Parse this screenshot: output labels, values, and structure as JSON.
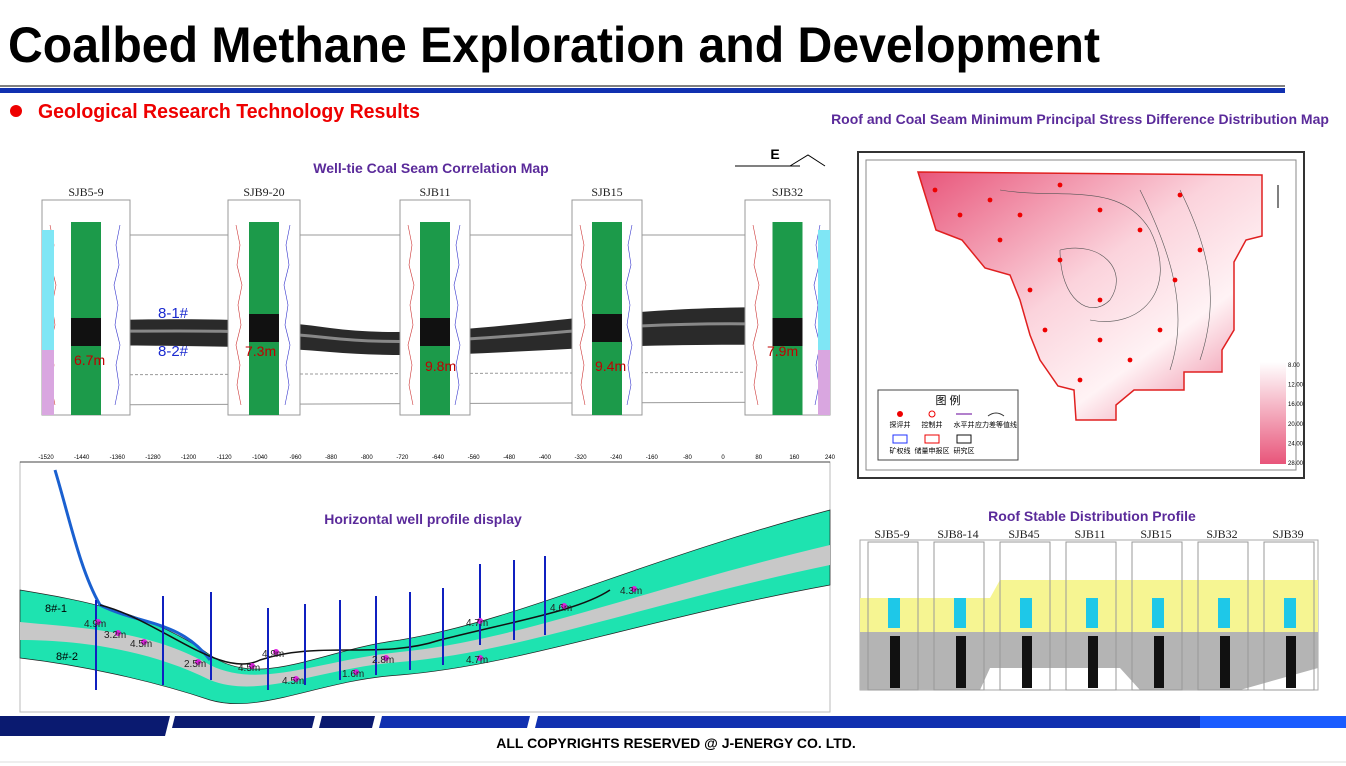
{
  "header": {
    "title": "Coalbed Methane Exploration and Development",
    "subtitle": "Geological Research Technology  Results"
  },
  "correlation": {
    "title": "Well-tie Coal Seam Correlation Map",
    "direction": "E",
    "wells": [
      "SJB5-9",
      "SJB9-20",
      "SJB11",
      "SJB15",
      "SJB32"
    ],
    "seam_labels": [
      "8-1#",
      "8-2#"
    ],
    "thicknesses": [
      "6.7m",
      "7.3m",
      "9.8m",
      "9.4m",
      "7.9m"
    ]
  },
  "stress_map": {
    "title": "Roof and Coal Seam Minimum Principal Stress Difference Distribution Map",
    "legend_title": "图 例",
    "legend_items": [
      "探评井",
      "控制井",
      "水平井",
      "应力差等值线",
      "矿权线",
      "储量申报区",
      "研究区"
    ],
    "scale": [
      "8.00",
      "12.00",
      "16.00",
      "20.00",
      "24.00",
      "28.00"
    ]
  },
  "horizontal": {
    "title": "Horizontal well profile display",
    "x_ticks": [
      "-1520",
      "-1440",
      "-1360",
      "-1280",
      "-1200",
      "-1120",
      "-1040",
      "-960",
      "-880",
      "-800",
      "-720",
      "-640",
      "-560",
      "-480",
      "-400",
      "-320",
      "-240",
      "-160",
      "-80",
      "0",
      "80",
      "160",
      "240"
    ],
    "seam_labels": [
      "8#-1",
      "8#-2"
    ],
    "thicknesses": [
      "4.9m",
      "3.2m",
      "4.5m",
      "2.5m",
      "4.5m",
      "4.9m",
      "4.5m",
      "1.6m",
      "2.8m",
      "4.7m",
      "4.7m",
      "4.6m",
      "4.3m"
    ]
  },
  "roof": {
    "title": "Roof Stable Distribution Profile",
    "wells": [
      "SJB5-9",
      "SJB8-14",
      "SJB45",
      "SJB11",
      "SJB15",
      "SJB32",
      "SJB39"
    ]
  },
  "footer": {
    "copyright": "ALL COPYRIGHTS RESERVED @ J-ENERGY CO. LTD."
  }
}
